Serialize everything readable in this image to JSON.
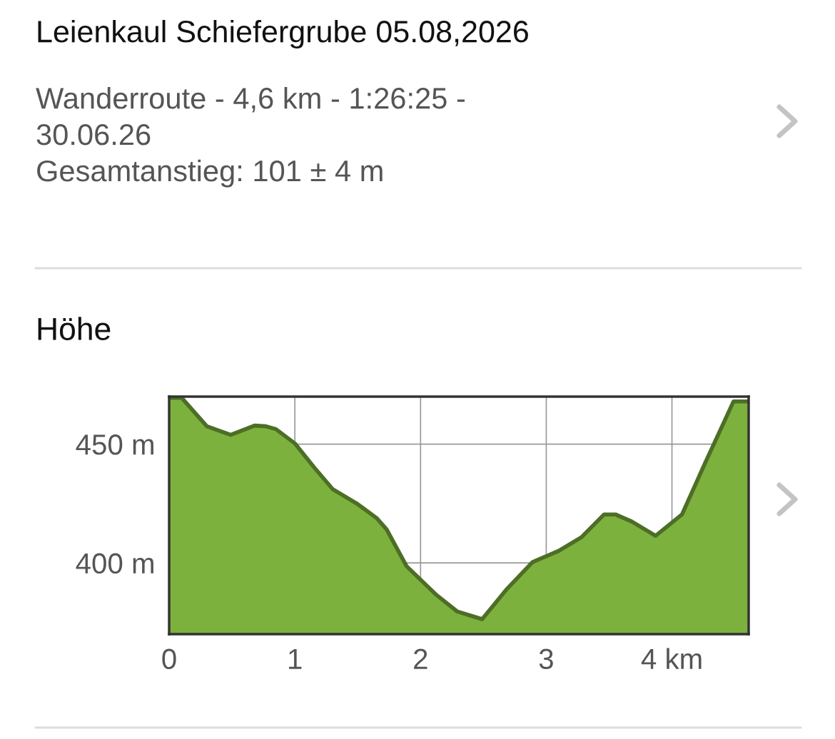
{
  "chart_data": {
    "type": "area",
    "title": "Leienkaul Schiefergrube 05.08,2026",
    "subtitle": "Wanderroute - 4,6 km - 1:26:25 -\n30.06.26\nGesamtanstieg: 101 ± 4 m",
    "annotations": [
      "Höhe"
    ],
    "x": [
      0,
      0.1,
      0.3,
      0.49,
      0.68,
      0.77,
      0.85,
      1.0,
      1.15,
      1.3,
      1.49,
      1.65,
      1.73,
      1.89,
      2.12,
      2.29,
      2.49,
      2.69,
      2.89,
      3.1,
      3.28,
      3.46,
      3.55,
      3.68,
      3.87,
      4.08,
      4.27,
      4.49,
      4.61
    ],
    "series": [
      {
        "color": "#7cb13e",
        "values": [
          469.5,
          469.5,
          457.5,
          453.9,
          457.8,
          457.5,
          456.3,
          450.3,
          440.4,
          431.1,
          425.1,
          418.9,
          414.1,
          398.5,
          386.8,
          379.6,
          376.3,
          389.2,
          400.3,
          405.1,
          410.8,
          420.4,
          420.4,
          417.4,
          411.4,
          420.4,
          442.8,
          468,
          468
        ]
      }
    ],
    "xlim": [
      0,
      4.61
    ],
    "ylim": [
      370,
      470
    ],
    "xticks": [
      0,
      1,
      2,
      3,
      {
        "value": 4,
        "label": "4 km"
      }
    ],
    "yticks": [
      {
        "value": 400,
        "label": "400 m"
      },
      {
        "value": 450,
        "label": "450 m"
      }
    ],
    "grid": true
  }
}
